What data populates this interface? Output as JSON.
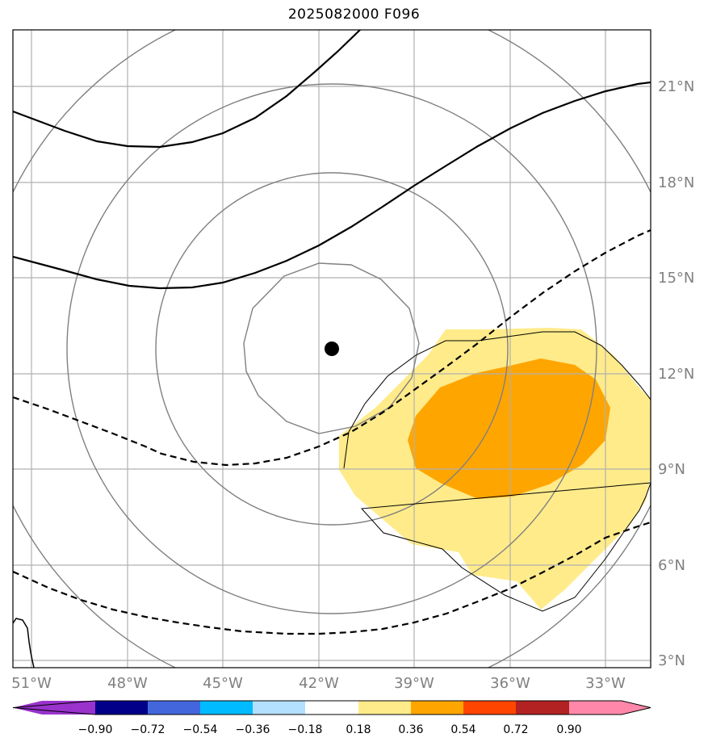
{
  "title": "2025082000 F096",
  "map": {
    "lon_range": [
      -51.6,
      -31.6
    ],
    "lat_range": [
      2.8,
      22.8
    ],
    "lon_ticks": [
      {
        "value": -51,
        "label": "51°W"
      },
      {
        "value": -48,
        "label": "48°W"
      },
      {
        "value": -45,
        "label": "45°W"
      },
      {
        "value": -42,
        "label": "42°W"
      },
      {
        "value": -39,
        "label": "39°W"
      },
      {
        "value": -36,
        "label": "36°W"
      },
      {
        "value": -33,
        "label": "33°W"
      }
    ],
    "lat_ticks": [
      {
        "value": 3,
        "label": "3°N"
      },
      {
        "value": 6,
        "label": "6°N"
      },
      {
        "value": 9,
        "label": "9°N"
      },
      {
        "value": 12,
        "label": "12°N"
      },
      {
        "value": 15,
        "label": "15°N"
      },
      {
        "value": 18,
        "label": "18°N"
      },
      {
        "value": 21,
        "label": "21°N"
      }
    ],
    "center_marker": {
      "lon": -41.6,
      "lat": 12.8
    }
  },
  "colorbar": {
    "colors": [
      "#9933cc",
      "#000088",
      "#4466dd",
      "#00bbff",
      "#b3e0ff",
      "#ffffff",
      "#ffeb8a",
      "#ffa500",
      "#ff4500",
      "#b22222",
      "#ff88aa"
    ],
    "labels": [
      "−0.90",
      "−0.72",
      "−0.54",
      "−0.36",
      "−0.18",
      "0.18",
      "0.36",
      "0.54",
      "0.72",
      "0.90"
    ],
    "shading": {
      "light": "#ffeb8a",
      "dark": "#ffa500"
    }
  }
}
